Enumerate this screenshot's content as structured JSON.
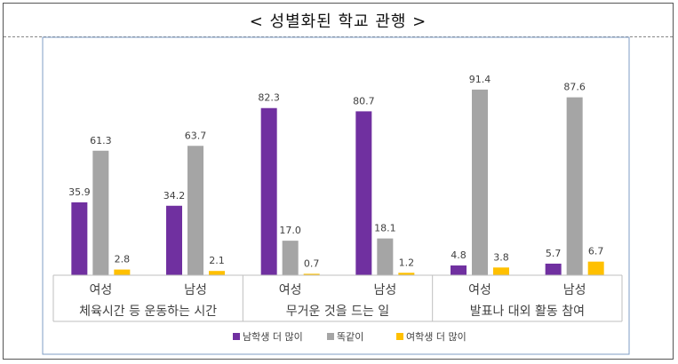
{
  "page_title": "< 성별화된 학교 관행 >",
  "chart_data": {
    "type": "bar",
    "title": "< 성별화된 학교 관행 >",
    "groups": [
      "체육시간 등 운동하는 시간",
      "무거운 것을 드는 일",
      "발표나 대외 활동 참여"
    ],
    "categories": [
      "여성",
      "남성",
      "여성",
      "남성",
      "여성",
      "남성"
    ],
    "series": [
      {
        "name": "남학생 더 많이",
        "color": "#7030A0",
        "values": [
          35.9,
          34.2,
          82.3,
          80.7,
          4.8,
          5.7
        ]
      },
      {
        "name": "똑같이",
        "color": "#A5A5A5",
        "values": [
          61.3,
          63.7,
          17.0,
          18.1,
          91.4,
          87.6
        ]
      },
      {
        "name": "여학생 더 많이",
        "color": "#FFC000",
        "values": [
          2.8,
          2.1,
          0.7,
          1.2,
          3.8,
          6.7
        ]
      }
    ],
    "value_labels": [
      [
        "35.9",
        "34.2",
        "82.3",
        "80.7",
        "4.8",
        "5.7"
      ],
      [
        "61.3",
        "63.7",
        "17.0",
        "18.1",
        "91.4",
        "87.6"
      ],
      [
        "2.8",
        "2.1",
        "0.7",
        "1.2",
        "3.8",
        "6.7"
      ]
    ],
    "ylim": [
      0,
      100
    ],
    "legend_position": "bottom",
    "grid": false
  }
}
